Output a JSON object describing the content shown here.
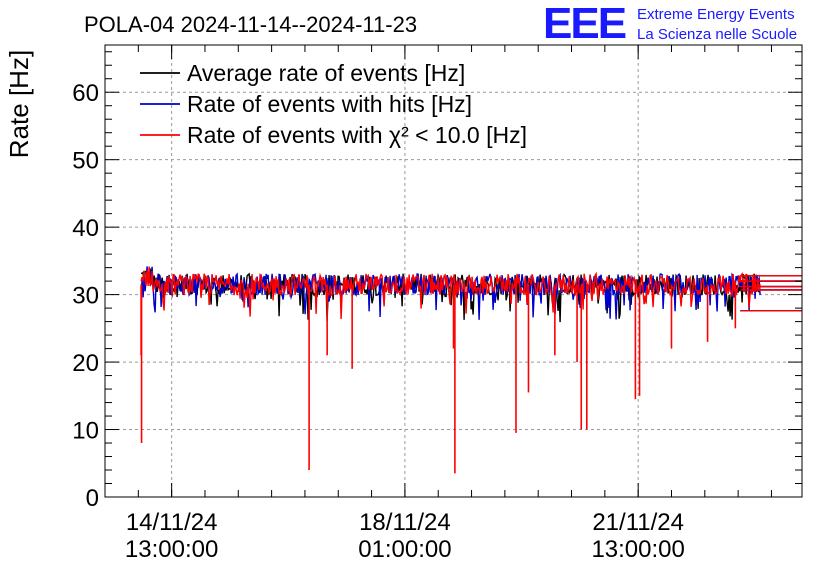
{
  "header": {
    "title": "POLA-04 2024-11-14--2024-11-23",
    "logo_mark": "EEE",
    "logo_line1": "Extreme Energy Events",
    "logo_line2": "La Scienza nelle Scuole"
  },
  "colors": {
    "average": "#000000",
    "hits": "#0000cc",
    "chi2": "#ff0000",
    "logo": "#1a1aff",
    "grid": "#9a9a9a"
  },
  "chart_data": {
    "type": "line",
    "title": "POLA-04 2024-11-14--2024-11-23",
    "xlabel": "",
    "ylabel": "Rate [Hz]",
    "ylim": [
      0,
      67
    ],
    "yticks": [
      0,
      10,
      20,
      30,
      40,
      50,
      60
    ],
    "grid": true,
    "legend_position": "top-left",
    "x_is_datetime": true,
    "xticks": [
      {
        "line1": "14/11/24",
        "line2": "13:00:00",
        "at": "2024-11-14T13:00:00"
      },
      {
        "line1": "18/11/24",
        "line2": "01:00:00",
        "at": "2024-11-18T01:00:00"
      },
      {
        "line1": "21/11/24",
        "line2": "13:00:00",
        "at": "2024-11-21T13:00:00"
      }
    ],
    "xlim": [
      "2024-11-13T13:00:00",
      "2024-11-24T00:00:00"
    ],
    "series": [
      {
        "name": "Average rate of events [Hz]",
        "color": "#000000",
        "approx_range": [
          "2024-11-14T02:00:00",
          "2024-11-23T09:00:00"
        ],
        "baseline": 31.5
      },
      {
        "name": "Rate of events with hits [Hz]",
        "color": "#0000cc",
        "approx_range": [
          "2024-11-14T02:00:00",
          "2024-11-23T09:00:00"
        ],
        "baseline": 31.5
      },
      {
        "name": "Rate of events with χ² < 10.0 [Hz]",
        "color": "#ff0000",
        "approx_range": [
          "2024-11-14T02:00:00",
          "2024-11-23T09:00:00"
        ],
        "baseline": 31.5,
        "dips": [
          {
            "t": "2024-11-14T02:10:00",
            "v": 8
          },
          {
            "t": "2024-11-14T02:00:00",
            "v": 21
          },
          {
            "t": "2024-11-16T14:30:00",
            "v": 4
          },
          {
            "t": "2024-11-16T21:00:00",
            "v": 21
          },
          {
            "t": "2024-11-17T06:00:00",
            "v": 19
          },
          {
            "t": "2024-11-18T19:00:00",
            "v": 3.5
          },
          {
            "t": "2024-11-18T18:30:00",
            "v": 22
          },
          {
            "t": "2024-11-19T17:00:00",
            "v": 9.5
          },
          {
            "t": "2024-11-19T21:30:00",
            "v": 15.5
          },
          {
            "t": "2024-11-20T07:00:00",
            "v": 21
          },
          {
            "t": "2024-11-20T16:30:00",
            "v": 10
          },
          {
            "t": "2024-11-20T18:30:00",
            "v": 10
          },
          {
            "t": "2024-11-20T15:00:00",
            "v": 20
          },
          {
            "t": "2024-11-21T12:00:00",
            "v": 14.5
          },
          {
            "t": "2024-11-21T13:30:00",
            "v": 15
          },
          {
            "t": "2024-11-22T01:00:00",
            "v": 22
          },
          {
            "t": "2024-11-22T14:00:00",
            "v": 23
          },
          {
            "t": "2024-11-23T00:00:00",
            "v": 25
          }
        ]
      }
    ]
  }
}
